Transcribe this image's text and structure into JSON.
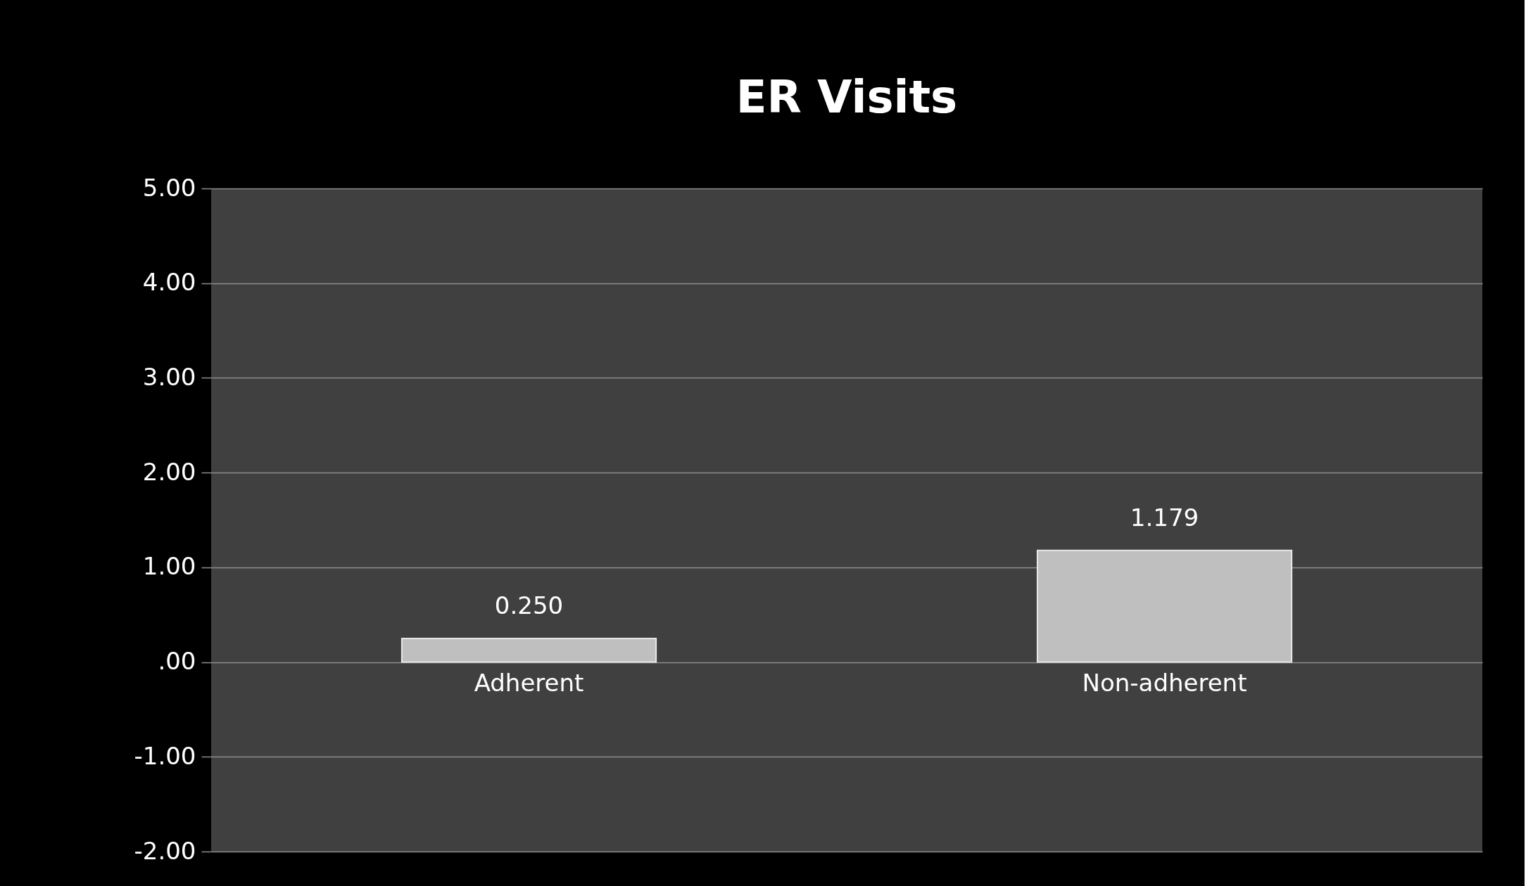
{
  "chart_data": {
    "type": "bar",
    "title": "ER Visits",
    "categories": [
      "Adherent",
      "Non-adherent"
    ],
    "values": [
      0.25,
      1.179
    ],
    "value_labels": [
      "0.250",
      "1.179"
    ],
    "color": "#bfbfbf",
    "ylim": [
      -2,
      5
    ],
    "yticks": [
      {
        "value": 5,
        "label": "5.00"
      },
      {
        "value": 4,
        "label": "4.00"
      },
      {
        "value": 3,
        "label": "3.00"
      },
      {
        "value": 2,
        "label": "2.00"
      },
      {
        "value": 1,
        "label": "1.00"
      },
      {
        "value": 0,
        "label": ".00"
      },
      {
        "value": -1,
        "label": "-1.00"
      },
      {
        "value": -2,
        "label": "-2.00"
      }
    ],
    "grid": "y"
  }
}
